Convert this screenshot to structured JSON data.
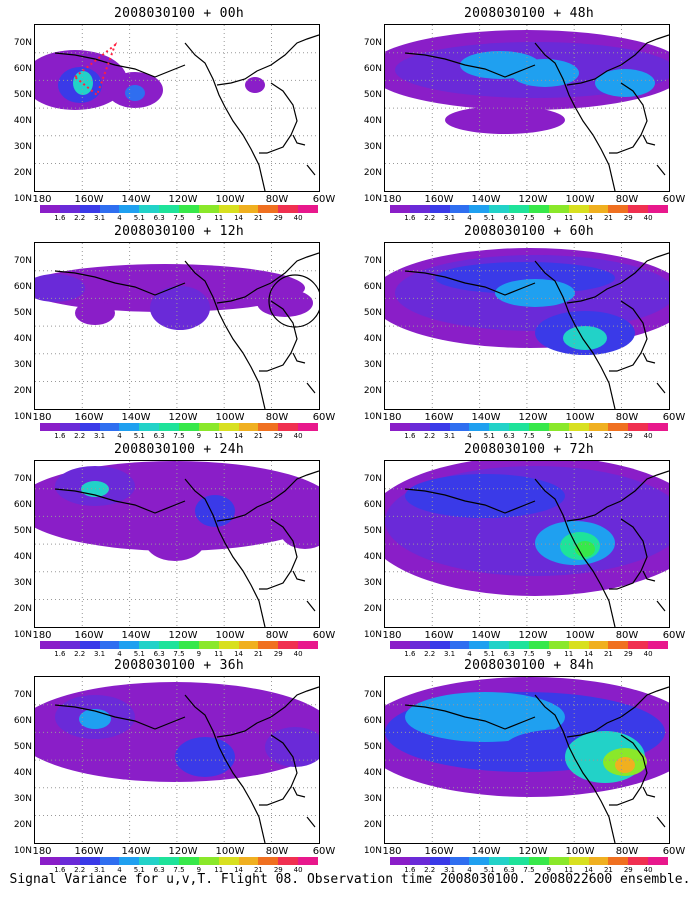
{
  "caption": "Signal Variance for u,v,T. Flight 08. Observation time 2008030100. 2008022600 ensemble.",
  "lat_labels": [
    "70N",
    "60N",
    "50N",
    "40N",
    "30N",
    "20N",
    "10N"
  ],
  "lon_labels": [
    "180",
    "160W",
    "140W",
    "120W",
    "100W",
    "80W",
    "60W"
  ],
  "colorbar": {
    "values": [
      "1.6",
      "2.2",
      "3.1",
      "4",
      "5.1",
      "6.3",
      "7.5",
      "9",
      "11",
      "14",
      "21",
      "29",
      "40"
    ],
    "colors": [
      "#8a1ec8",
      "#6a2ad8",
      "#3a3ae8",
      "#2f6ef0",
      "#1fa0f0",
      "#22d2c8",
      "#1ee39a",
      "#37e84a",
      "#8ae82a",
      "#d8e020",
      "#f0b020",
      "#f07020",
      "#f03050",
      "#e8188c"
    ]
  },
  "panels": [
    {
      "title": "2008030100 + 00h",
      "marker": "dotted-red"
    },
    {
      "title": "2008030100 + 48h"
    },
    {
      "title": "2008030100 + 12h",
      "marker": "circle"
    },
    {
      "title": "2008030100 + 60h"
    },
    {
      "title": "2008030100 + 24h"
    },
    {
      "title": "2008030100 + 72h"
    },
    {
      "title": "2008030100 + 36h"
    },
    {
      "title": "2008030100 + 84h"
    }
  ]
}
